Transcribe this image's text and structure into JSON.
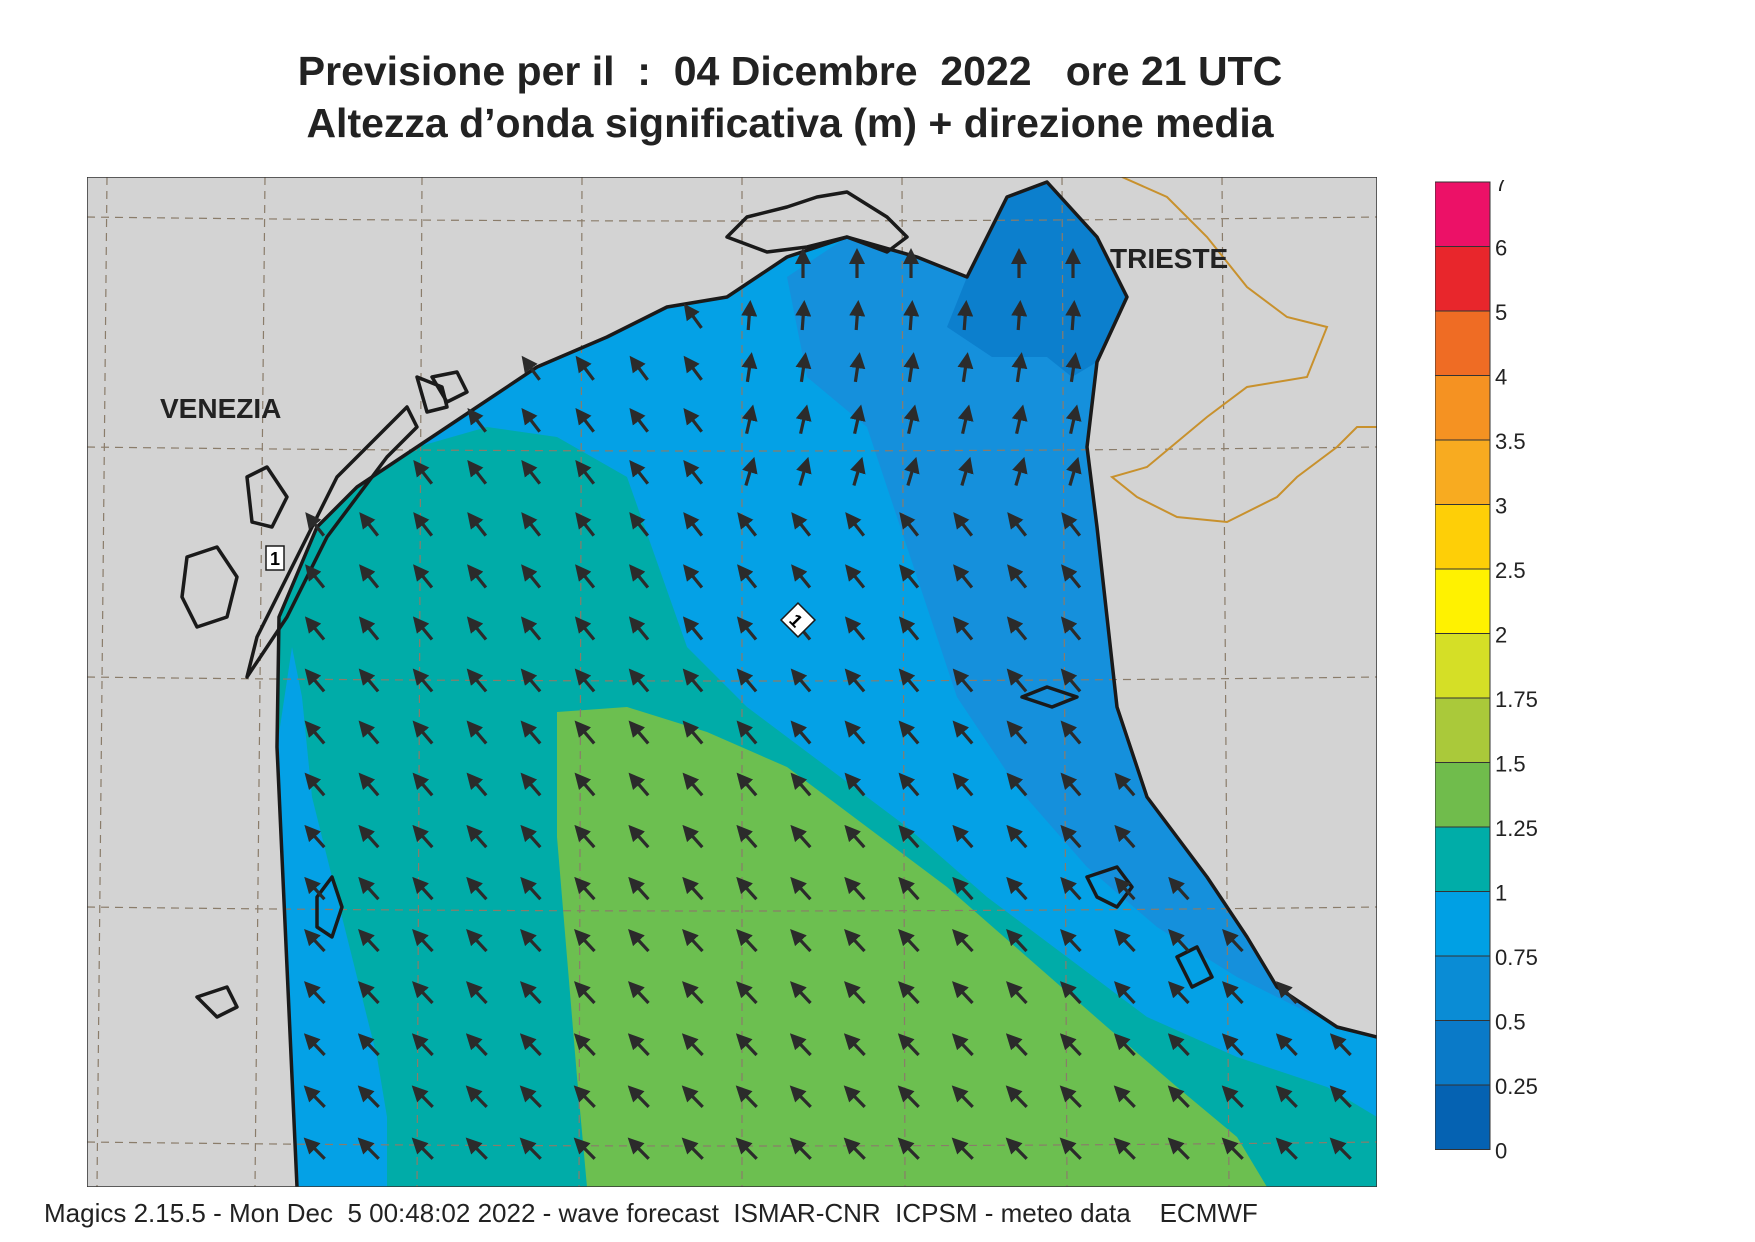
{
  "header": {
    "title_line1": "Previsione per il  :  04 Dicembre  2022   ore 21 UTC",
    "title_line2": "Altezza d’onda significativa (m) + direzione media"
  },
  "map": {
    "labels": {
      "venice": "VENEZIA",
      "trieste": "TRIESTE"
    },
    "station_markers": [
      "1",
      "1"
    ],
    "colors": {
      "land": "#d3d3d3",
      "coast": "#1a1a1a",
      "border": "#c8912d",
      "grid": "#8a7c6a",
      "band_0_25": "#0b65b4",
      "band_0_5": "#0c7fcd",
      "band_0_75": "#1590dc",
      "band_1": "#04a1e6",
      "band_1_25": "#00aca8",
      "band_1_5": "#6cbf50",
      "arrow": "#2b2b2b"
    }
  },
  "legend": {
    "ticks": [
      "7",
      "6",
      "5",
      "4",
      "3.5",
      "3",
      "2.5",
      "2",
      "1.75",
      "1.5",
      "1.25",
      "1",
      "0.75",
      "0.5",
      "0.25",
      "0"
    ],
    "colors_top_to_bottom": [
      "#ec1167",
      "#e8262c",
      "#ef6c24",
      "#f59222",
      "#f8ab20",
      "#fecf07",
      "#fff200",
      "#d5df26",
      "#aac93a",
      "#70bc4c",
      "#00ada8",
      "#00a0e4",
      "#0a8cd5",
      "#0a7ac8",
      "#0562b2"
    ]
  },
  "footer": {
    "text": "Magics 2.15.5 - Mon Dec  5 00:48:02 2022 - wave forecast  ISMAR-CNR  ICPSM - meteo data    ECMWF"
  }
}
